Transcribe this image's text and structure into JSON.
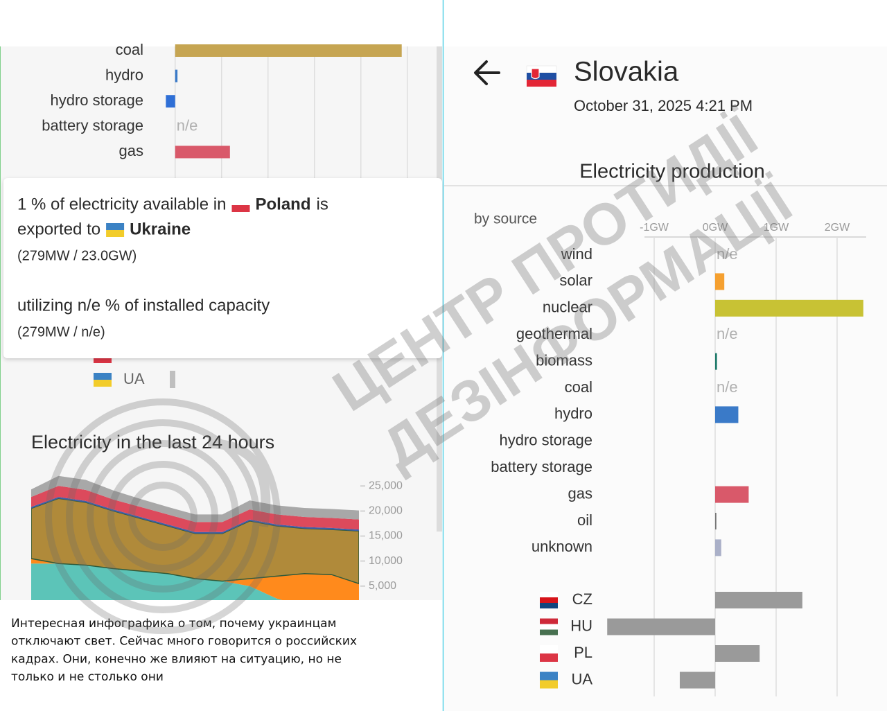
{
  "left_panel": {
    "production": {
      "type": "bar",
      "categories": [
        "coal",
        "hydro",
        "hydro storage",
        "battery storage",
        "gas"
      ],
      "values": [
        9.76,
        0.1,
        -0.4,
        null,
        2.36
      ],
      "value_labels": [
        null,
        null,
        null,
        "n/e",
        null
      ],
      "colors": [
        "#c6a552",
        "#3a7ac8",
        "#2f6fd6",
        "#999999",
        "#d9596a"
      ],
      "xlim": [
        -0.5,
        11.5
      ],
      "xticks": [
        0,
        2,
        4,
        6,
        8,
        10
      ],
      "grid": true
    },
    "tooltip": {
      "line1_start": "1 % of electricity available in",
      "from_country": "Poland",
      "line1_end": "is",
      "line2_start": "exported to",
      "to_country": "Ukraine",
      "flow_detail": "(279MW / 23.0GW)",
      "utilization": "utilizing n/e % of installed capacity",
      "utilization_detail": "(279MW / n/e)"
    },
    "legend_remnant": "UA",
    "history": {
      "type": "area",
      "stacked": true,
      "title": "Electricity in the last 24 hours",
      "categories": [
        null,
        null,
        null,
        null,
        null,
        null,
        null,
        null,
        null,
        null,
        null,
        null,
        null
      ],
      "series": [
        {
          "color": "#5cc4b8",
          "values": [
            9500,
            9500,
            9200,
            8500,
            8000,
            7500,
            6500,
            6000,
            5000,
            2500,
            1000,
            300,
            0
          ]
        },
        {
          "color": "#ff8a1c",
          "values": [
            1000,
            0,
            0,
            0,
            0,
            0,
            0,
            0,
            1500,
            4500,
            6500,
            7000,
            5500
          ]
        },
        {
          "color": "#b08a3a",
          "values": [
            10000,
            13000,
            12500,
            11500,
            10500,
            9500,
            9000,
            9500,
            11500,
            10000,
            9000,
            9000,
            10500
          ]
        },
        {
          "color": "#3d5fa8",
          "values": [
            300,
            300,
            300,
            300,
            300,
            300,
            300,
            300,
            300,
            300,
            300,
            300,
            300
          ]
        },
        {
          "color": "#dc4a5c",
          "values": [
            2000,
            2200,
            2200,
            2000,
            2000,
            2000,
            2000,
            2000,
            2000,
            2000,
            2000,
            2000,
            2000
          ]
        },
        {
          "color": "#a8a8a8",
          "values": [
            1500,
            2000,
            2000,
            1800,
            1600,
            1500,
            1500,
            1500,
            1800,
            1800,
            1800,
            1800,
            1800
          ]
        }
      ],
      "ylim": [
        0,
        30000
      ],
      "yticks": [
        {
          "value": 5000,
          "label": "5,000"
        },
        {
          "value": 10000,
          "label": "10,000"
        },
        {
          "value": 15000,
          "label": "15,000"
        },
        {
          "value": 20000,
          "label": "20,000"
        },
        {
          "value": 25000,
          "label": "25,000"
        }
      ]
    }
  },
  "right_panel": {
    "header": {
      "country": "Slovakia",
      "timestamp": "October 31, 2025 4:21 PM"
    },
    "chart": {
      "type": "bar",
      "title": "Electricity production",
      "subtitle": "by source",
      "categories": [
        "wind",
        "solar",
        "nuclear",
        "geothermal",
        "biomass",
        "coal",
        "hydro",
        "hydro storage",
        "battery storage",
        "gas",
        "oil",
        "unknown"
      ],
      "values": [
        null,
        0.15,
        2.43,
        null,
        0.03,
        null,
        0.38,
        0,
        0,
        0.55,
        0.02,
        0.1
      ],
      "value_labels": [
        "n/e",
        null,
        null,
        "n/e",
        null,
        "n/e",
        null,
        null,
        null,
        null,
        null,
        null
      ],
      "colors": [
        "#999999",
        "#f5a030",
        "#c8c234",
        "#999999",
        "#1e7a6a",
        "#999999",
        "#3a7ac8",
        "#2f6fd6",
        "#888888",
        "#d9596a",
        "#777777",
        "#aab0c8"
      ],
      "exchange_categories": [
        "CZ",
        "HU",
        "PL",
        "UA"
      ],
      "exchange_values": [
        1.43,
        -1.77,
        0.73,
        -0.58
      ],
      "exchange_color": "#9a9a9a",
      "xlim": [
        -2,
        2.5
      ],
      "xticks": [
        {
          "value": -1,
          "label": "-1GW"
        },
        {
          "value": 0,
          "label": "0GW"
        },
        {
          "value": 1,
          "label": "1GW"
        },
        {
          "value": 2,
          "label": "2GW"
        }
      ],
      "grid": true
    }
  },
  "caption": {
    "lines": [
      "Интересная инфографика о том, почему украинцам",
      "отключают свет. Сейчас много говорится о российских",
      "кадрах. Они, конечно же влияют на ситуацию, но не",
      "только и не столько они"
    ]
  },
  "watermark": {
    "lines": [
      "ЦЕНТР ПРОТИДІЇ",
      "ДЕЗІНФОРМАЦІЇ"
    ]
  }
}
